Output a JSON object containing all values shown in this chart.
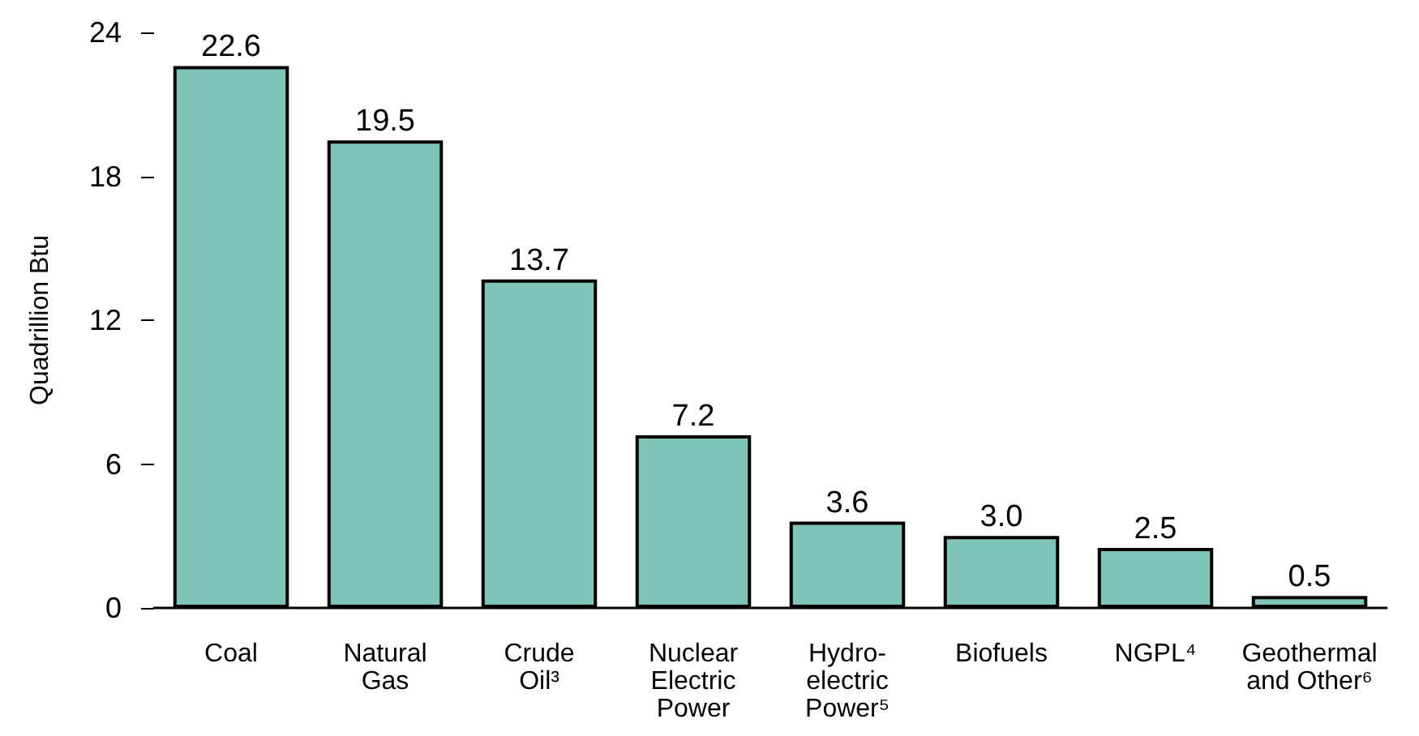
{
  "chart_data": {
    "type": "bar",
    "ylabel": "Quadrillion Btu",
    "categories": [
      "Coal",
      "Natural\nGas",
      "Crude\nOil³",
      "Nuclear\nElectric\nPower",
      "Hydro-\nelectric\nPower⁵",
      "Biofuels",
      "NGPL⁴",
      "Geothermal\nand Other⁶"
    ],
    "values": [
      22.6,
      19.5,
      13.7,
      7.2,
      3.6,
      3.0,
      2.5,
      0.5
    ],
    "color": "#80c4b9",
    "ylim": [
      0,
      24
    ],
    "yticks": [
      0,
      6,
      12,
      18,
      24
    ],
    "value_labels": [
      "22.6",
      "19.5",
      "13.7",
      "7.2",
      "3.6",
      "3.0",
      "2.5",
      "0.5"
    ]
  }
}
